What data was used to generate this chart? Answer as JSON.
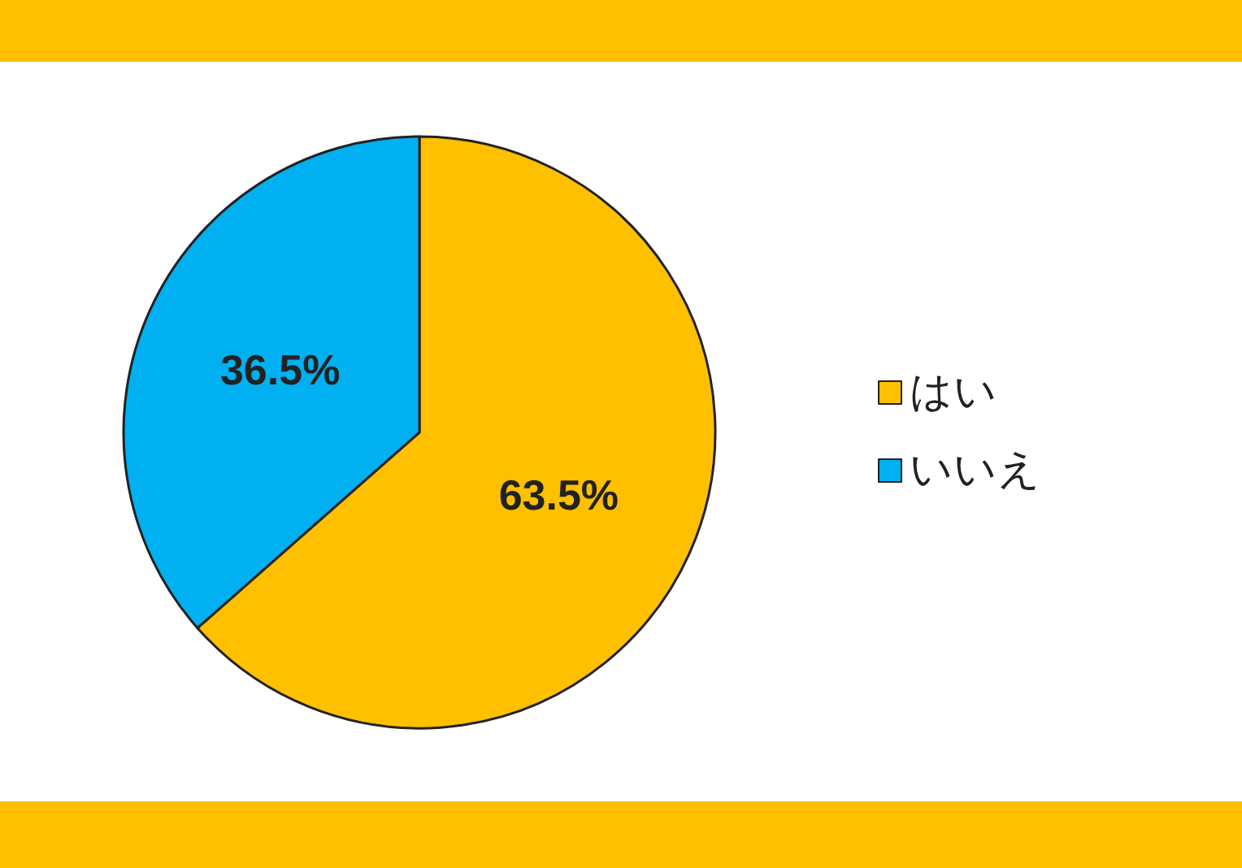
{
  "chart_data": {
    "type": "pie",
    "categories": [
      "はい",
      "いいえ"
    ],
    "values": [
      63.5,
      36.5
    ],
    "colors": [
      "#ffc000",
      "#00b0f0"
    ],
    "value_labels": [
      "63.5%",
      "36.5%"
    ],
    "legend": "right"
  }
}
